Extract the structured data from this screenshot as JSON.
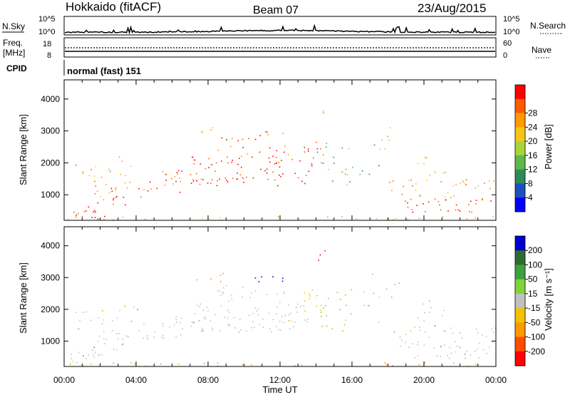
{
  "header": {
    "station": "Hokkaido (fitACF)",
    "beam": "Beam 07",
    "date": "23/Aug/2015"
  },
  "left_labels": {
    "nsky": "N.Sky",
    "freq": "Freq.",
    "freq_unit": "[MHz]",
    "cpid": "CPID"
  },
  "right_labels": {
    "nsearch": "N.Search",
    "nave": "Nave"
  },
  "nsky_axis": {
    "top": "10^5",
    "bottom": "10^0"
  },
  "nsearch_axis": {
    "top": "10^5",
    "bottom": "10^0"
  },
  "freq_axis": {
    "top": "18",
    "bottom": "8"
  },
  "nave_axis": {
    "top": "60",
    "bottom": "0"
  },
  "cpid_text": "normal (fast) 151",
  "colors": {
    "power": [
      "#0000ff",
      "#1e4fbe",
      "#2e8b57",
      "#5fb84a",
      "#a8d43c",
      "#f5c518",
      "#ff9a00",
      "#ff5a00",
      "#ff0000"
    ],
    "velocity": [
      "#0000cc",
      "#2e6b30",
      "#3ea13e",
      "#7fd43b",
      "#c0c0c0",
      "#f2c200",
      "#ff9900",
      "#ff4d00",
      "#ff0000"
    ]
  },
  "chart_data": [
    {
      "type": "heatmap",
      "title": "Power",
      "ylabel": "Slant Range [km]",
      "xlabel": "Time UT",
      "ylim": [
        200,
        4600
      ],
      "x_ticks": [
        "00:00",
        "04:00",
        "08:00",
        "12:00",
        "16:00",
        "20:00",
        "00:00"
      ],
      "y_ticks": [
        "1000",
        "2000",
        "3000",
        "4000"
      ],
      "colorbar": {
        "label": "Power [dB]",
        "ticks": [
          "4",
          "8",
          "12",
          "16",
          "20",
          "24",
          "28"
        ]
      }
    },
    {
      "type": "heatmap",
      "title": "Velocity",
      "ylabel": "Slant Range [km]",
      "xlabel": "Time UT",
      "ylim": [
        200,
        4600
      ],
      "x_ticks": [
        "00:00",
        "04:00",
        "08:00",
        "12:00",
        "16:00",
        "20:00",
        "00:00"
      ],
      "y_ticks": [
        "1000",
        "2000",
        "3000",
        "4000"
      ],
      "colorbar": {
        "label": "Velocity [m s⁻¹]",
        "ticks": [
          "200",
          "100",
          "50",
          "15",
          "-15",
          "-50",
          "-100",
          "-200"
        ]
      }
    }
  ],
  "xaxis_label": "Time UT",
  "x_ticks": [
    "00:00",
    "04:00",
    "08:00",
    "12:00",
    "16:00",
    "20:00",
    "00:00"
  ]
}
